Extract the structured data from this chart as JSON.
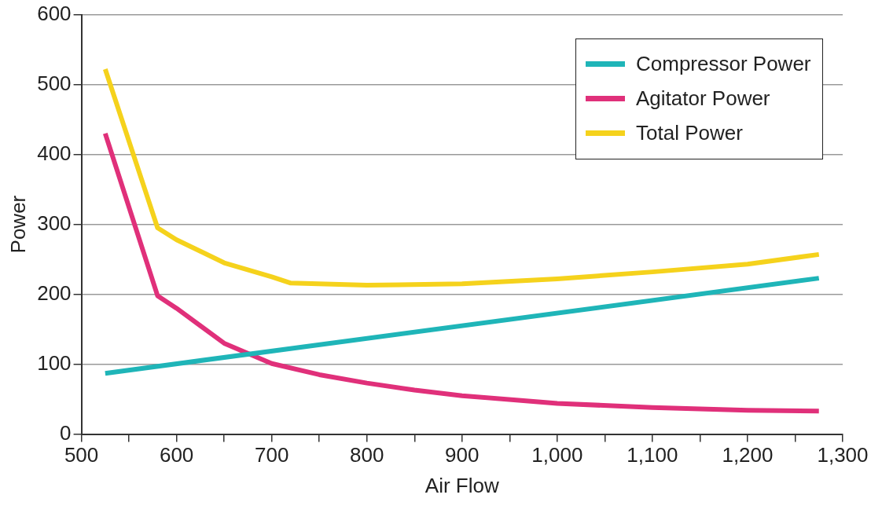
{
  "chart_data": {
    "type": "line",
    "xlabel": "Air Flow",
    "ylabel": "Power",
    "xlim": [
      500,
      1300
    ],
    "ylim": [
      0,
      600
    ],
    "xticks": [
      500,
      {
        "value": 550,
        "label": null
      },
      600,
      {
        "value": 650,
        "label": null
      },
      700,
      {
        "value": 750,
        "label": null
      },
      800,
      {
        "value": 850,
        "label": null
      },
      900,
      {
        "value": 950,
        "label": null
      },
      {
        "value": 1000,
        "label": "1,000"
      },
      {
        "value": 1050,
        "label": null
      },
      {
        "value": 1100,
        "label": "1,100"
      },
      {
        "value": 1150,
        "label": null
      },
      {
        "value": 1200,
        "label": "1,200"
      },
      {
        "value": 1250,
        "label": null
      },
      {
        "value": 1300,
        "label": "1,300"
      }
    ],
    "yticks": [
      0,
      100,
      200,
      300,
      400,
      500,
      600
    ],
    "grid": "y",
    "legend": "top right",
    "marker": "none",
    "line_style": "solid",
    "series": [
      {
        "name": "Compressor Power",
        "color": "#1fb5b8",
        "x": [
          525,
          1275
        ],
        "values": [
          87,
          223
        ]
      },
      {
        "name": "Agitator Power",
        "color": "#e0307a",
        "x": [
          525,
          580,
          600,
          650,
          700,
          750,
          800,
          850,
          900,
          1000,
          1100,
          1200,
          1275
        ],
        "values": [
          430,
          198,
          180,
          130,
          101,
          85,
          73,
          63,
          55,
          44,
          38,
          34,
          33
        ]
      },
      {
        "name": "Total Power",
        "color": "#f5d21c",
        "x": [
          525,
          580,
          600,
          650,
          700,
          720,
          800,
          900,
          1000,
          1100,
          1200,
          1275
        ],
        "values": [
          522,
          295,
          278,
          245,
          225,
          216,
          213,
          215,
          222,
          232,
          243,
          257
        ]
      }
    ]
  }
}
